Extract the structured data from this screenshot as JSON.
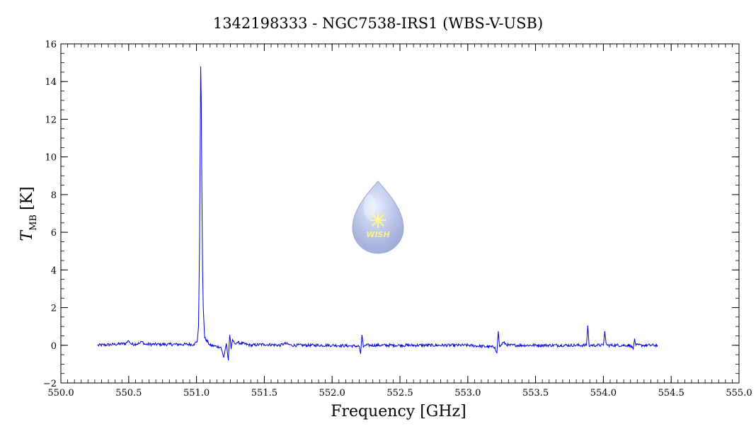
{
  "chart_data": {
    "type": "line",
    "title": "1342198333 - NGC7538-IRS1 (WBS-V-USB)",
    "xlabel": "Frequency [GHz]",
    "ylabel_main": "T",
    "ylabel_sub": "MB",
    "ylabel_unit": "[K]",
    "xlim": [
      550.0,
      555.0
    ],
    "ylim": [
      -2,
      16
    ],
    "x_ticks": [
      550.0,
      550.5,
      551.0,
      551.5,
      552.0,
      552.5,
      553.0,
      553.5,
      554.0,
      554.5,
      555.0
    ],
    "x_tick_labels": [
      "550.0",
      "550.5",
      "551.0",
      "551.5",
      "552.0",
      "552.5",
      "553.0",
      "553.5",
      "554.0",
      "554.5",
      "555.0"
    ],
    "y_ticks": [
      -2,
      0,
      2,
      4,
      6,
      8,
      10,
      12,
      14,
      16
    ],
    "y_tick_labels": [
      "−2",
      "0",
      "2",
      "4",
      "6",
      "8",
      "10",
      "12",
      "14",
      "16"
    ],
    "grid": false,
    "line_color": "#0000e0",
    "series": [
      {
        "x": [
          550.27,
          550.4,
          550.48,
          550.5,
          550.52,
          550.58,
          550.6,
          550.62,
          550.8,
          550.98,
          551.005,
          551.015,
          551.022,
          551.028,
          551.031,
          551.035,
          551.04,
          551.045,
          551.05,
          551.06,
          551.1,
          551.18,
          551.2,
          551.22,
          551.235,
          551.245,
          551.255,
          551.265,
          551.28,
          551.3,
          551.4,
          551.5,
          551.62,
          551.65,
          551.7,
          552.0,
          552.2,
          552.21,
          552.22,
          552.23,
          552.24,
          552.5,
          553.0,
          553.2,
          553.215,
          553.225,
          553.235,
          553.26,
          553.3,
          553.5,
          553.8,
          553.875,
          553.885,
          553.895,
          553.905,
          553.95,
          554.0,
          554.01,
          554.02,
          554.03,
          554.1,
          554.2,
          554.22,
          554.23,
          554.24,
          554.3,
          554.4
        ],
        "y": [
          0.0,
          0.05,
          0.1,
          0.25,
          0.05,
          0.1,
          0.2,
          0.05,
          0.05,
          0.05,
          0.2,
          1.0,
          5.0,
          11.5,
          14.8,
          13.0,
          8.0,
          4.0,
          2.0,
          0.4,
          0.0,
          -0.1,
          -0.65,
          0.1,
          -0.8,
          0.55,
          -0.2,
          0.3,
          0.1,
          0.15,
          0.0,
          0.05,
          0.0,
          0.1,
          0.0,
          0.0,
          -0.05,
          -0.45,
          0.55,
          -0.1,
          0.0,
          0.0,
          0.0,
          -0.1,
          -0.4,
          0.75,
          -0.1,
          0.15,
          0.0,
          0.0,
          0.0,
          0.0,
          1.05,
          -0.05,
          0.0,
          0.0,
          0.0,
          0.75,
          0.1,
          0.0,
          0.0,
          0.0,
          -0.2,
          0.35,
          0.0,
          0.0,
          0.0
        ]
      }
    ]
  },
  "logo": {
    "text": "WISH",
    "fill_color": "#b4bfe6",
    "star_color": "#fffa6e",
    "text_color": "#f5f07a"
  }
}
